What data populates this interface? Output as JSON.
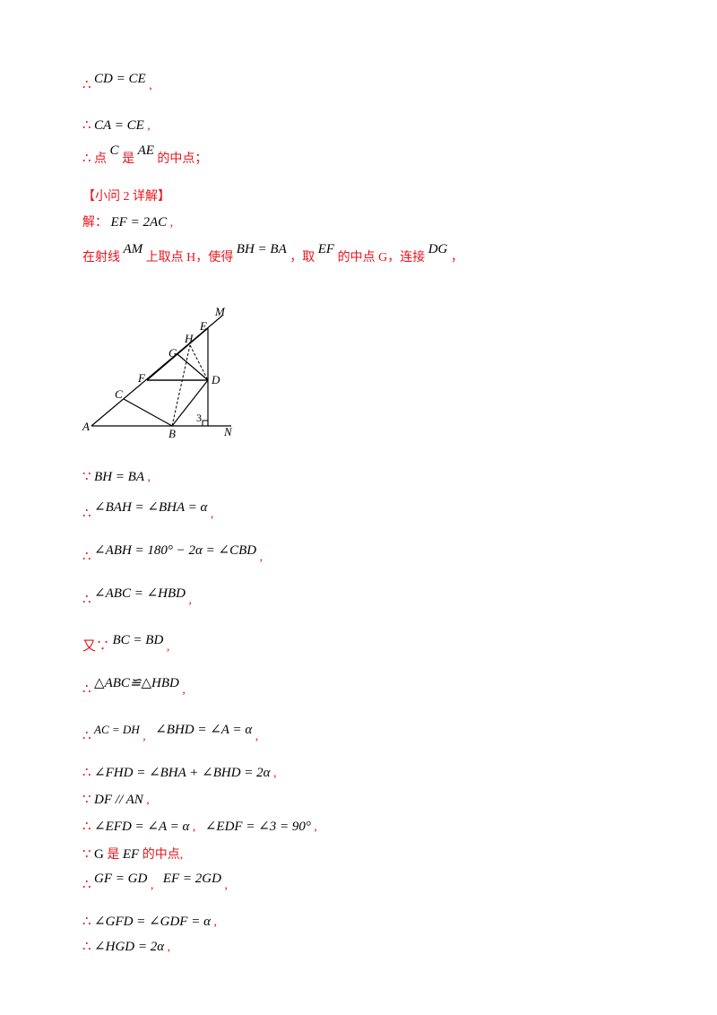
{
  "steps": {
    "s1": {
      "sym": "∴",
      "expr": "CD = CE",
      "tail": ","
    },
    "s2": {
      "sym": "∴",
      "expr": "CA = CE",
      "tail": ","
    },
    "s3": {
      "sym": "∴",
      "pre": "点",
      "v1": "C",
      "mid": "是",
      "v2": "AE",
      "post": "的中点；"
    }
  },
  "part2_header": "【小问 2 详解】",
  "answer": {
    "pre": "解：",
    "expr": "EF = 2AC",
    "tail": ","
  },
  "construction": {
    "t1": "在射线",
    "v1": "AM",
    "t2": "上取点 H，使得",
    "v2": "BH = BA",
    "t3": "，取",
    "v3": "EF",
    "t4": "的中点 G，连接",
    "v4": "DG",
    "t5": "，"
  },
  "figure": {
    "labels": [
      "M",
      "E",
      "H",
      "G",
      "F",
      "D",
      "C",
      "A",
      "B",
      "N",
      "3"
    ]
  },
  "proof": [
    {
      "sym": "∵",
      "expr": "BH = BA",
      "tail": ","
    },
    {
      "sym": "∴",
      "expr": "∠BAH = ∠BHA = α",
      "tail": ","
    },
    {
      "sym": "∴",
      "expr": "∠ABH = 180° − 2α = ∠CBD",
      "tail": ","
    },
    {
      "sym": "∴",
      "expr": "∠ABC = ∠HBD",
      "tail": ","
    },
    {
      "sym": "又∵",
      "expr": "BC = BD",
      "tail": ","
    },
    {
      "sym": "∴",
      "expr": "△ABC≌△HBD",
      "tail": ","
    },
    {
      "sym": "∴",
      "expr": "AC = DH",
      "tail": ",",
      "expr2": "∠BHD = ∠A = α",
      "tail2": ","
    },
    {
      "sym": "∴",
      "expr": "∠FHD = ∠BHA + ∠BHD = 2α",
      "tail": ","
    },
    {
      "sym": "∵",
      "expr": "DF // AN",
      "tail": ","
    },
    {
      "sym": "∴",
      "expr": "∠EFD = ∠A = α",
      "tail": ",",
      "expr2": "∠EDF = ∠3 = 90°",
      "tail2": ","
    },
    {
      "sym": "∵",
      "v1": "G",
      "mid": "是",
      "v2": "EF",
      "post": "的中点,"
    },
    {
      "sym": "∴",
      "expr": "GF = GD",
      "tail": ",",
      "expr2": "EF = 2GD",
      "tail2": ","
    },
    {
      "sym": "∴",
      "expr": "∠GFD = ∠GDF = α",
      "tail": ","
    },
    {
      "sym": "∴",
      "expr": "∠HGD = 2α",
      "tail": ","
    }
  ]
}
